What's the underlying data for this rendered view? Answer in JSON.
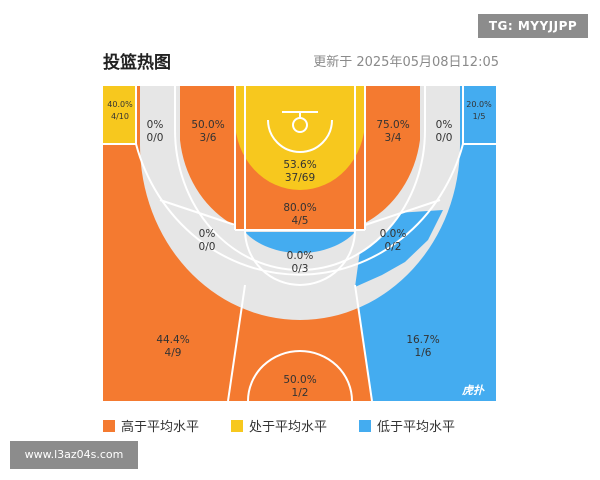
{
  "header": {
    "title": "投篮热图",
    "update_time": "更新于 2025年05月08日12:05"
  },
  "watermarks": {
    "tg": "TG: MYYJJPP",
    "url": "www.l3az04s.com",
    "logo": "虎扑"
  },
  "colors": {
    "above_avg": "#F47A30",
    "avg": "#F7C81E",
    "below_avg": "#44ACF0",
    "neutral": "#E6E6E6"
  },
  "zones": {
    "left_corner": {
      "pct": "40.0%",
      "frac": "4/10"
    },
    "left_wing_three": {
      "pct": "0%",
      "frac": "0/0"
    },
    "left_elbow_mid": {
      "pct": "50.0%",
      "frac": "3/6"
    },
    "paint": {
      "pct": "53.6%",
      "frac": "37/69"
    },
    "right_elbow_mid": {
      "pct": "75.0%",
      "frac": "3/4"
    },
    "right_wing_three": {
      "pct": "0%",
      "frac": "0/0"
    },
    "right_corner": {
      "pct": "20.0%",
      "frac": "1/5"
    },
    "left_baseline_mid": {
      "pct": "0%",
      "frac": "0/0"
    },
    "free_throw": {
      "pct": "80.0%",
      "frac": "4/5"
    },
    "right_baseline_mid": {
      "pct": "0.0%",
      "frac": "0/2"
    },
    "top_key_mid": {
      "pct": "0.0%",
      "frac": "0/3"
    },
    "left_three": {
      "pct": "44.4%",
      "frac": "4/9"
    },
    "top_three": {
      "pct": "50.0%",
      "frac": "1/2"
    },
    "right_three": {
      "pct": "16.7%",
      "frac": "1/6"
    }
  },
  "legend": [
    {
      "label": "高于平均水平",
      "color": "#F47A30"
    },
    {
      "label": "处于平均水平",
      "color": "#F7C81E"
    },
    {
      "label": "低于平均水平",
      "color": "#44ACF0"
    }
  ]
}
